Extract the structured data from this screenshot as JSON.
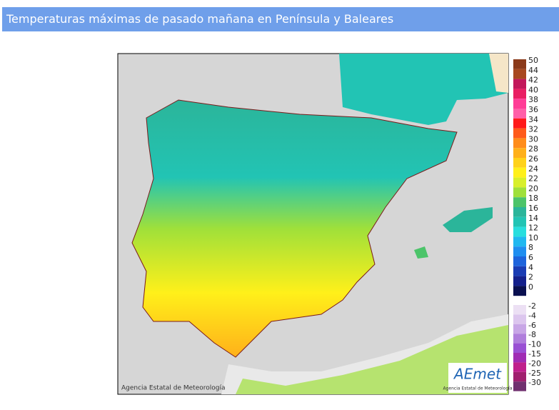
{
  "header": {
    "title": "Temperaturas máximas de pasado mañana en Península y Baleares"
  },
  "legend": {
    "items": [
      {
        "label": "50",
        "color": "#8b3a1a"
      },
      {
        "label": "44",
        "color": "#a8481f"
      },
      {
        "label": "42",
        "color": "#c2185b"
      },
      {
        "label": "40",
        "color": "#e91e63"
      },
      {
        "label": "38",
        "color": "#ff3c96"
      },
      {
        "label": "36",
        "color": "#ff5fa8"
      },
      {
        "label": "34",
        "color": "#ff1a1a"
      },
      {
        "label": "32",
        "color": "#ff5a1a"
      },
      {
        "label": "30",
        "color": "#ff8c1a"
      },
      {
        "label": "28",
        "color": "#ffb01a"
      },
      {
        "label": "26",
        "color": "#ffd21a"
      },
      {
        "label": "24",
        "color": "#fff01a"
      },
      {
        "label": "22",
        "color": "#d8ef2a"
      },
      {
        "label": "20",
        "color": "#9fe03a"
      },
      {
        "label": "18",
        "color": "#4cc46a"
      },
      {
        "label": "16",
        "color": "#2bb59a"
      },
      {
        "label": "14",
        "color": "#22c4b4"
      },
      {
        "label": "12",
        "color": "#28dede"
      },
      {
        "label": "10",
        "color": "#20b8f0"
      },
      {
        "label": "8",
        "color": "#1f8ef0"
      },
      {
        "label": "6",
        "color": "#1e64dc"
      },
      {
        "label": "4",
        "color": "#1a3cb4"
      },
      {
        "label": "2",
        "color": "#14208c"
      },
      {
        "label": "0",
        "color": "#0a1050"
      }
    ],
    "negative_items": [
      {
        "label": "-2",
        "color": "#ece0f4"
      },
      {
        "label": "-4",
        "color": "#dcc6ee"
      },
      {
        "label": "-6",
        "color": "#c8a6e6"
      },
      {
        "label": "-8",
        "color": "#b07edc"
      },
      {
        "label": "-10",
        "color": "#9a50d4"
      },
      {
        "label": "-15",
        "color": "#a02cb4"
      },
      {
        "label": "-20",
        "color": "#c0208c"
      },
      {
        "label": "-25",
        "color": "#a0206e"
      },
      {
        "label": "-30",
        "color": "#70306e"
      }
    ]
  },
  "credit": "Agencia Estatal de Meteorología",
  "logo": {
    "text": "AEmet",
    "subtitle": "Agencia Estatal de Meteorología"
  }
}
